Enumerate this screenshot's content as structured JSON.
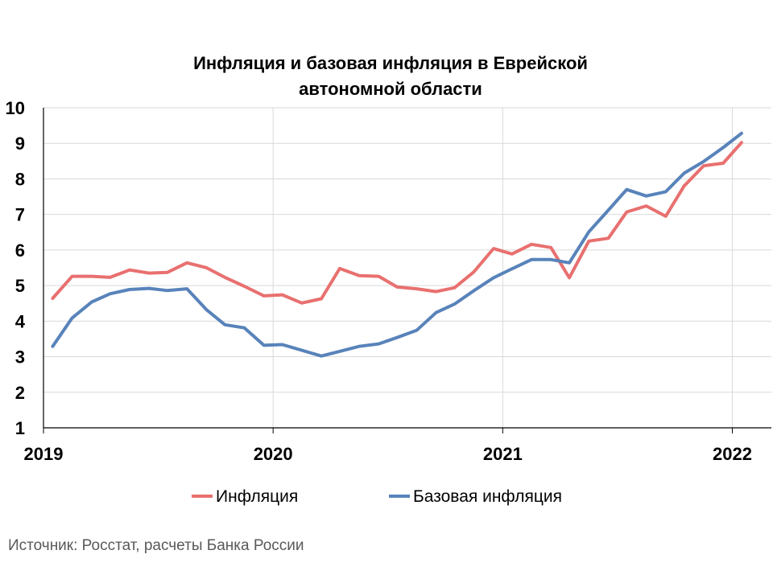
{
  "chart_data": {
    "type": "line",
    "title_lines": [
      "Инфляция и базовая инфляция в Еврейской",
      "автономной области"
    ],
    "ylim": [
      1,
      10
    ],
    "yticks": [
      1,
      2,
      3,
      4,
      5,
      6,
      7,
      8,
      9,
      10
    ],
    "xlim": [
      2019.0,
      2022.17
    ],
    "xticks": [
      {
        "value": 2019,
        "label": "2019"
      },
      {
        "value": 2020,
        "label": "2020"
      },
      {
        "value": 2021,
        "label": "2021"
      },
      {
        "value": 2022,
        "label": "2022"
      }
    ],
    "grid": true,
    "legend_position": "bottom",
    "series": [
      {
        "name": "Инфляция",
        "color": "#e8706f",
        "points": [
          [
            2019.04,
            4.64
          ],
          [
            2019.125,
            5.26
          ],
          [
            2019.21,
            5.26
          ],
          [
            2019.29,
            5.23
          ],
          [
            2019.375,
            5.44
          ],
          [
            2019.46,
            5.35
          ],
          [
            2019.54,
            5.37
          ],
          [
            2019.625,
            5.64
          ],
          [
            2019.71,
            5.5
          ],
          [
            2019.79,
            5.23
          ],
          [
            2019.875,
            4.98
          ],
          [
            2019.96,
            4.71
          ],
          [
            2020.04,
            4.74
          ],
          [
            2020.125,
            4.51
          ],
          [
            2020.21,
            4.63
          ],
          [
            2020.29,
            5.48
          ],
          [
            2020.375,
            5.28
          ],
          [
            2020.46,
            5.26
          ],
          [
            2020.54,
            4.96
          ],
          [
            2020.625,
            4.91
          ],
          [
            2020.71,
            4.83
          ],
          [
            2020.79,
            4.94
          ],
          [
            2020.875,
            5.39
          ],
          [
            2020.96,
            6.04
          ],
          [
            2021.04,
            5.89
          ],
          [
            2021.125,
            6.16
          ],
          [
            2021.21,
            6.07
          ],
          [
            2021.29,
            5.22
          ],
          [
            2021.375,
            6.25
          ],
          [
            2021.46,
            6.33
          ],
          [
            2021.54,
            7.07
          ],
          [
            2021.625,
            7.24
          ],
          [
            2021.71,
            6.95
          ],
          [
            2021.79,
            7.8
          ],
          [
            2021.875,
            8.37
          ],
          [
            2021.96,
            8.44
          ],
          [
            2022.04,
            9.02
          ]
        ]
      },
      {
        "name": "Базовая инфляция",
        "color": "#5883ba",
        "points": [
          [
            2019.04,
            3.29
          ],
          [
            2019.125,
            4.09
          ],
          [
            2019.21,
            4.54
          ],
          [
            2019.29,
            4.77
          ],
          [
            2019.375,
            4.89
          ],
          [
            2019.46,
            4.92
          ],
          [
            2019.54,
            4.86
          ],
          [
            2019.625,
            4.91
          ],
          [
            2019.71,
            4.32
          ],
          [
            2019.79,
            3.9
          ],
          [
            2019.875,
            3.81
          ],
          [
            2019.96,
            3.32
          ],
          [
            2020.04,
            3.34
          ],
          [
            2020.125,
            3.18
          ],
          [
            2020.21,
            3.02
          ],
          [
            2020.29,
            3.15
          ],
          [
            2020.375,
            3.29
          ],
          [
            2020.46,
            3.36
          ],
          [
            2020.54,
            3.54
          ],
          [
            2020.625,
            3.74
          ],
          [
            2020.71,
            4.24
          ],
          [
            2020.79,
            4.48
          ],
          [
            2020.875,
            4.86
          ],
          [
            2020.96,
            5.22
          ],
          [
            2021.04,
            5.47
          ],
          [
            2021.125,
            5.73
          ],
          [
            2021.21,
            5.73
          ],
          [
            2021.29,
            5.64
          ],
          [
            2021.375,
            6.51
          ],
          [
            2021.46,
            7.12
          ],
          [
            2021.54,
            7.7
          ],
          [
            2021.625,
            7.52
          ],
          [
            2021.71,
            7.64
          ],
          [
            2021.79,
            8.16
          ],
          [
            2021.875,
            8.49
          ],
          [
            2021.96,
            8.88
          ],
          [
            2022.04,
            9.28
          ]
        ]
      }
    ]
  },
  "source": "Источник: Росстат, расчеты Банка России"
}
